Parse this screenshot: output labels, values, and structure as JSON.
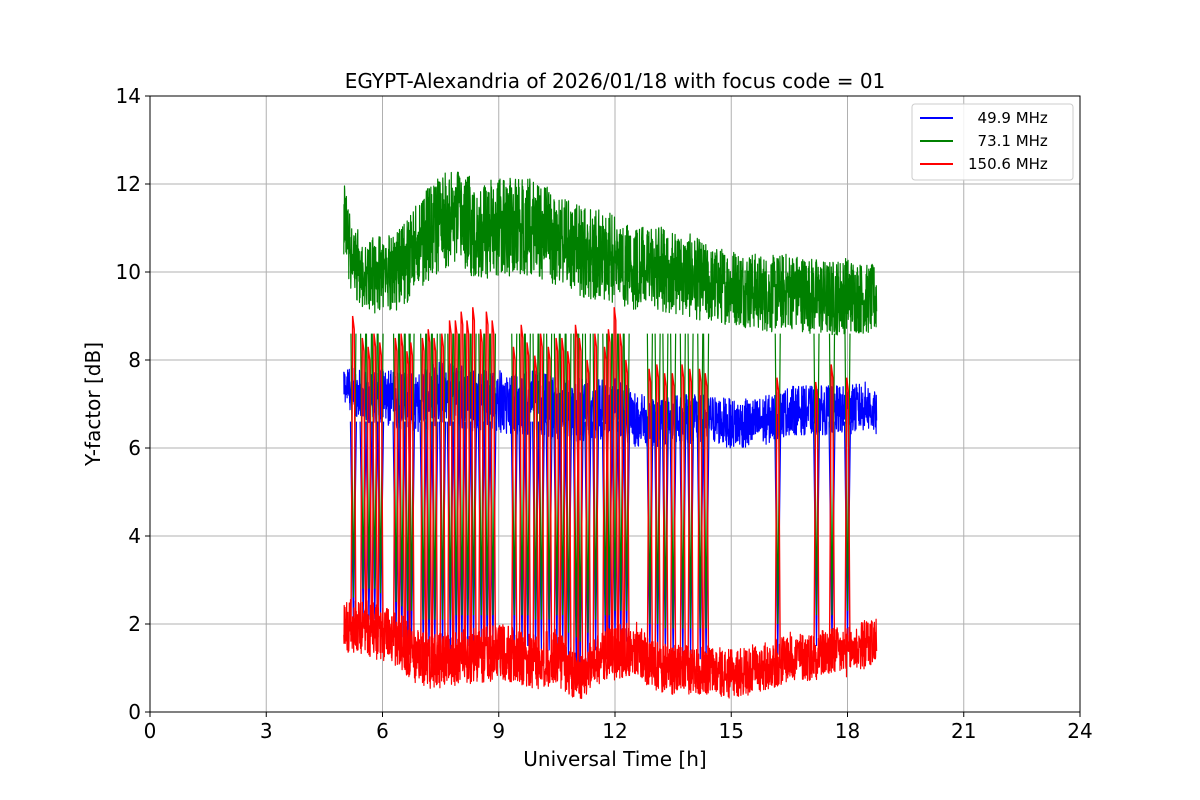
{
  "chart_data": {
    "type": "line",
    "title": "EGYPT-Alexandria of 2026/01/18 with focus code = 01",
    "xlabel": "Universal Time [h]",
    "ylabel": "Y-factor [dB]",
    "xlim": [
      0,
      24
    ],
    "ylim": [
      0,
      14
    ],
    "xticks": [
      0,
      3,
      6,
      9,
      12,
      15,
      18,
      21,
      24
    ],
    "yticks": [
      0,
      2,
      4,
      6,
      8,
      10,
      12,
      14
    ],
    "grid": true,
    "legend_position": "top-right",
    "series": [
      {
        "name": "49.9 MHz",
        "legend_label": "  49.9 MHz",
        "color": "#0000ff",
        "x": [
          5.0,
          5.2,
          5.5,
          6.0,
          6.5,
          7.0,
          7.5,
          8.0,
          8.5,
          9.0,
          9.5,
          10.0,
          10.5,
          11.0,
          11.5,
          12.0,
          12.5,
          13.0,
          13.5,
          14.0,
          14.5,
          15.0,
          15.5,
          16.0,
          16.5,
          17.0,
          17.5,
          18.0,
          18.5,
          18.75
        ],
        "base": [
          7.4,
          7.3,
          7.1,
          7.1,
          7.0,
          7.0,
          7.2,
          7.1,
          7.0,
          7.0,
          6.9,
          7.0,
          6.8,
          6.8,
          6.8,
          6.9,
          6.6,
          6.5,
          6.6,
          6.6,
          6.6,
          6.5,
          6.5,
          6.6,
          6.8,
          6.8,
          6.8,
          6.8,
          6.9,
          6.7
        ],
        "amplitude": [
          0.5,
          0.7,
          0.7,
          0.8,
          0.8,
          0.9,
          0.9,
          0.9,
          0.9,
          0.9,
          0.9,
          0.9,
          0.9,
          0.9,
          0.9,
          0.8,
          0.8,
          0.7,
          0.7,
          0.7,
          0.7,
          0.7,
          0.7,
          0.7,
          0.7,
          0.7,
          0.7,
          0.7,
          0.7,
          0.6
        ]
      },
      {
        "name": "73.1 MHz",
        "legend_label": "  73.1 MHz",
        "color": "#008000",
        "x": [
          5.0,
          5.2,
          5.5,
          6.0,
          6.5,
          7.0,
          7.5,
          8.0,
          8.5,
          9.0,
          9.5,
          10.0,
          10.5,
          11.0,
          11.5,
          12.0,
          12.5,
          13.0,
          13.5,
          14.0,
          14.5,
          15.0,
          15.5,
          16.0,
          16.5,
          17.0,
          17.5,
          18.0,
          18.5,
          18.75
        ],
        "base": [
          11.0,
          10.3,
          9.8,
          9.9,
          10.0,
          10.6,
          11.0,
          11.1,
          10.8,
          10.9,
          10.9,
          10.9,
          10.6,
          10.4,
          10.3,
          10.2,
          10.0,
          10.0,
          9.9,
          9.8,
          9.6,
          9.6,
          9.5,
          9.4,
          9.5,
          9.4,
          9.3,
          9.4,
          9.3,
          9.3
        ],
        "amplitude": [
          1.2,
          1.1,
          1.1,
          1.1,
          1.2,
          1.3,
          1.4,
          1.4,
          1.4,
          1.4,
          1.4,
          1.4,
          1.3,
          1.3,
          1.3,
          1.3,
          1.2,
          1.2,
          1.2,
          1.2,
          1.1,
          1.1,
          1.1,
          1.1,
          1.1,
          1.1,
          1.1,
          1.1,
          1.0,
          1.0
        ]
      },
      {
        "name": "150.6 MHz",
        "legend_label": "150.6 MHz",
        "color": "#ff0000",
        "x": [
          5.0,
          5.2,
          5.5,
          6.0,
          6.5,
          7.0,
          7.5,
          8.0,
          8.5,
          9.0,
          9.5,
          10.0,
          10.5,
          11.0,
          11.5,
          12.0,
          12.5,
          13.0,
          13.5,
          14.0,
          14.5,
          15.0,
          15.5,
          16.0,
          16.5,
          17.0,
          17.5,
          18.0,
          18.5,
          18.75
        ],
        "base": [
          1.8,
          1.9,
          1.9,
          1.7,
          1.5,
          1.1,
          1.1,
          1.2,
          1.2,
          1.3,
          1.2,
          1.1,
          1.2,
          0.7,
          1.1,
          1.3,
          1.4,
          1.0,
          0.9,
          0.9,
          0.9,
          0.8,
          0.9,
          1.0,
          1.2,
          1.2,
          1.3,
          1.3,
          1.5,
          1.6
        ],
        "amplitude": [
          0.7,
          0.8,
          0.8,
          0.8,
          0.8,
          0.8,
          0.8,
          0.8,
          0.8,
          0.8,
          0.8,
          0.8,
          0.8,
          0.7,
          0.7,
          0.8,
          0.8,
          0.7,
          0.7,
          0.7,
          0.7,
          0.7,
          0.7,
          0.7,
          0.7,
          0.7,
          0.7,
          0.7,
          0.7,
          0.7
        ]
      }
    ],
    "bursts": [
      {
        "x": 5.25,
        "low": 1.6,
        "high": 9.0
      },
      {
        "x": 5.5,
        "low": 1.8,
        "high": 8.5
      },
      {
        "x": 5.65,
        "low": 1.8,
        "high": 8.3
      },
      {
        "x": 5.8,
        "low": 1.8,
        "high": 8.6
      },
      {
        "x": 5.95,
        "low": 1.7,
        "high": 8.4
      },
      {
        "x": 6.35,
        "low": 1.5,
        "high": 8.5
      },
      {
        "x": 6.5,
        "low": 1.4,
        "high": 8.6
      },
      {
        "x": 6.65,
        "low": 1.3,
        "high": 8.2
      },
      {
        "x": 6.75,
        "low": 1.3,
        "high": 8.4
      },
      {
        "x": 7.05,
        "low": 1.1,
        "high": 8.5
      },
      {
        "x": 7.2,
        "low": 1.1,
        "high": 8.7
      },
      {
        "x": 7.35,
        "low": 1.1,
        "high": 8.5
      },
      {
        "x": 7.55,
        "low": 1.1,
        "high": 8.6
      },
      {
        "x": 7.75,
        "low": 1.1,
        "high": 8.9
      },
      {
        "x": 7.9,
        "low": 1.2,
        "high": 8.9
      },
      {
        "x": 8.05,
        "low": 1.2,
        "high": 9.1
      },
      {
        "x": 8.2,
        "low": 1.2,
        "high": 8.9
      },
      {
        "x": 8.35,
        "low": 1.2,
        "high": 9.2
      },
      {
        "x": 8.55,
        "low": 1.2,
        "high": 8.7
      },
      {
        "x": 8.7,
        "low": 1.2,
        "high": 9.1
      },
      {
        "x": 8.85,
        "low": 1.2,
        "high": 8.9
      },
      {
        "x": 9.4,
        "low": 1.2,
        "high": 8.3
      },
      {
        "x": 9.6,
        "low": 1.2,
        "high": 8.8
      },
      {
        "x": 9.75,
        "low": 1.2,
        "high": 8.4
      },
      {
        "x": 9.95,
        "low": 1.1,
        "high": 8.1
      },
      {
        "x": 10.1,
        "low": 1.1,
        "high": 8.6
      },
      {
        "x": 10.3,
        "low": 1.1,
        "high": 8.3
      },
      {
        "x": 10.5,
        "low": 1.2,
        "high": 8.5
      },
      {
        "x": 10.65,
        "low": 1.2,
        "high": 8.5
      },
      {
        "x": 10.8,
        "low": 0.8,
        "high": 8.2
      },
      {
        "x": 11.0,
        "low": 0.7,
        "high": 8.8
      },
      {
        "x": 11.1,
        "low": 0.6,
        "high": 8.5
      },
      {
        "x": 11.3,
        "low": 0.8,
        "high": 8.0
      },
      {
        "x": 11.5,
        "low": 1.1,
        "high": 8.6
      },
      {
        "x": 11.75,
        "low": 1.2,
        "high": 8.3
      },
      {
        "x": 11.85,
        "low": 1.2,
        "high": 8.7
      },
      {
        "x": 12.0,
        "low": 1.3,
        "high": 9.2
      },
      {
        "x": 12.15,
        "low": 1.3,
        "high": 8.6
      },
      {
        "x": 12.3,
        "low": 1.3,
        "high": 8.0
      },
      {
        "x": 12.9,
        "low": 1.0,
        "high": 7.8
      },
      {
        "x": 13.1,
        "low": 1.0,
        "high": 7.9
      },
      {
        "x": 13.3,
        "low": 0.9,
        "high": 7.7
      },
      {
        "x": 13.5,
        "low": 0.9,
        "high": 7.7
      },
      {
        "x": 13.75,
        "low": 0.9,
        "high": 7.9
      },
      {
        "x": 13.95,
        "low": 0.9,
        "high": 7.8
      },
      {
        "x": 14.2,
        "low": 0.9,
        "high": 7.8
      },
      {
        "x": 14.35,
        "low": 0.9,
        "high": 7.7
      },
      {
        "x": 16.2,
        "low": 1.0,
        "high": 7.6
      },
      {
        "x": 17.2,
        "low": 1.2,
        "high": 7.5
      },
      {
        "x": 17.6,
        "low": 1.2,
        "high": 7.9
      },
      {
        "x": 18.0,
        "low": 1.3,
        "high": 7.6
      }
    ]
  }
}
